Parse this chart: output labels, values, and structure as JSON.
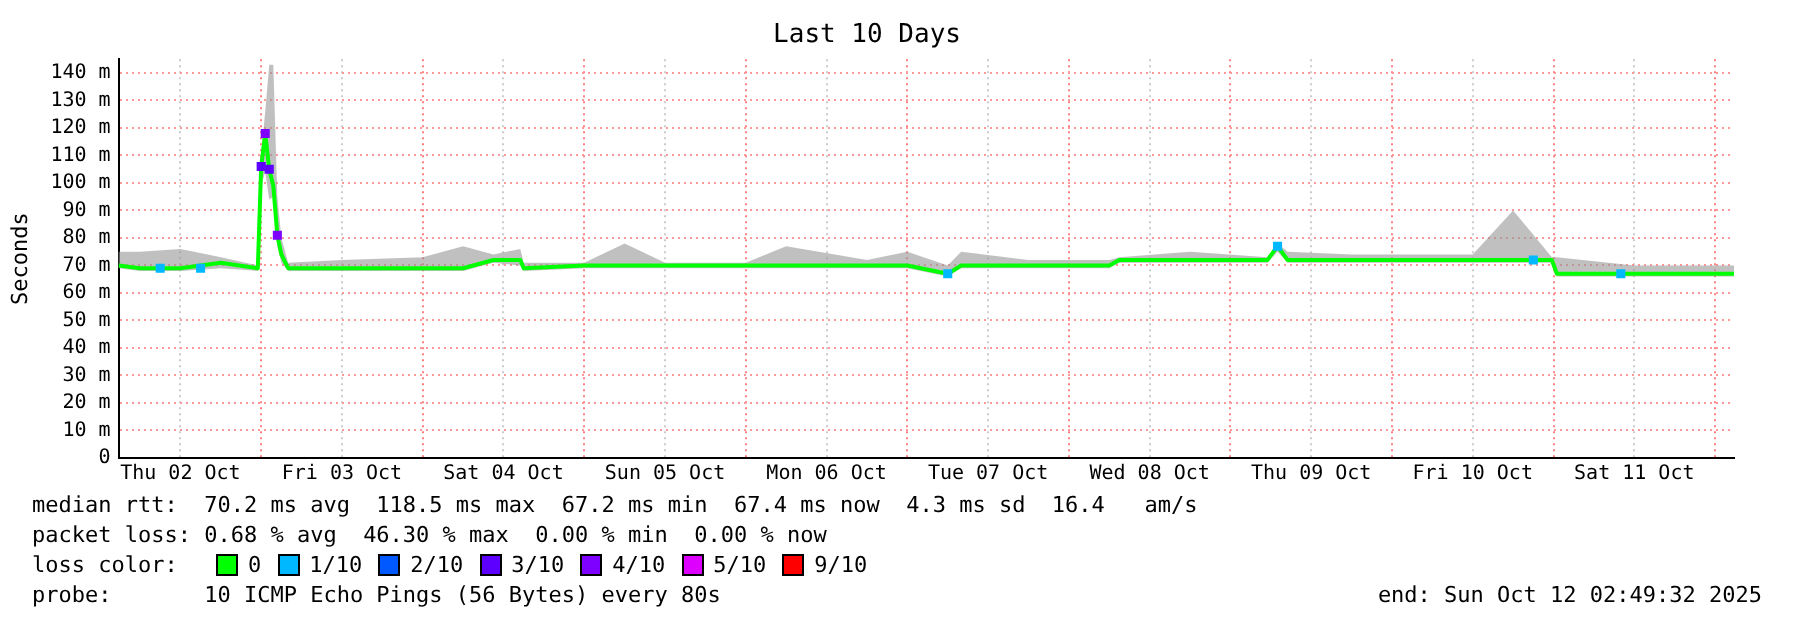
{
  "chart_data": {
    "type": "line",
    "title": "Last 10 Days",
    "ylabel": "Seconds",
    "legend_title": "loss color:",
    "xlim": [
      "2025-10-02T02:49",
      "2025-10-12T02:49"
    ],
    "xticks": [
      {
        "value": "2025-10-02T12:00",
        "label": "Thu 02 Oct"
      },
      {
        "value": "2025-10-03T00:00",
        "label": null
      },
      {
        "value": "2025-10-03T12:00",
        "label": "Fri 03 Oct"
      },
      {
        "value": "2025-10-04T00:00",
        "label": null
      },
      {
        "value": "2025-10-04T12:00",
        "label": "Sat 04 Oct"
      },
      {
        "value": "2025-10-05T00:00",
        "label": null
      },
      {
        "value": "2025-10-05T12:00",
        "label": "Sun 05 Oct"
      },
      {
        "value": "2025-10-06T00:00",
        "label": null
      },
      {
        "value": "2025-10-06T12:00",
        "label": "Mon 06 Oct"
      },
      {
        "value": "2025-10-07T00:00",
        "label": null
      },
      {
        "value": "2025-10-07T12:00",
        "label": "Tue 07 Oct"
      },
      {
        "value": "2025-10-08T00:00",
        "label": null
      },
      {
        "value": "2025-10-08T12:00",
        "label": "Wed 08 Oct"
      },
      {
        "value": "2025-10-09T00:00",
        "label": null
      },
      {
        "value": "2025-10-09T12:00",
        "label": "Thu 09 Oct"
      },
      {
        "value": "2025-10-10T00:00",
        "label": null
      },
      {
        "value": "2025-10-10T12:00",
        "label": "Fri 10 Oct"
      },
      {
        "value": "2025-10-11T00:00",
        "label": null
      },
      {
        "value": "2025-10-11T12:00",
        "label": "Sat 11 Oct"
      },
      {
        "value": "2025-10-12T00:00",
        "label": null
      }
    ],
    "ylim": [
      0,
      145
    ],
    "yticks": [
      0,
      {
        "value": 10,
        "label": "10 m"
      },
      {
        "value": 20,
        "label": "20 m"
      },
      {
        "value": 30,
        "label": "30 m"
      },
      {
        "value": 40,
        "label": "40 m"
      },
      {
        "value": 50,
        "label": "50 m"
      },
      {
        "value": 60,
        "label": "60 m"
      },
      {
        "value": 70,
        "label": "70 m"
      },
      {
        "value": 80,
        "label": "80 m"
      },
      {
        "value": 90,
        "label": "90 m"
      },
      {
        "value": 100,
        "label": "100 m"
      },
      {
        "value": 110,
        "label": "110 m"
      },
      {
        "value": 120,
        "label": "120 m"
      },
      {
        "value": 130,
        "label": "130 m"
      },
      {
        "value": 140,
        "label": "140 m"
      }
    ],
    "grid": true,
    "legend": "bottom",
    "marker": "none",
    "line_style": "solid",
    "series": [
      {
        "name": "0",
        "color": "#00ff00",
        "x": [
          "2025-10-02T02:49",
          "2025-10-02T06:00",
          "2025-10-02T12:00",
          "2025-10-02T18:00",
          "2025-10-02T23:30",
          "2025-10-03T00:00",
          "2025-10-03T00:36",
          "2025-10-03T01:12",
          "2025-10-03T01:48",
          "2025-10-03T02:24",
          "2025-10-03T03:00",
          "2025-10-03T04:00",
          "2025-10-03T12:00",
          "2025-10-04T00:00",
          "2025-10-04T06:00",
          "2025-10-04T10:30",
          "2025-10-04T14:30",
          "2025-10-04T15:00",
          "2025-10-05T00:00",
          "2025-10-05T06:00",
          "2025-10-05T12:00",
          "2025-10-06T00:00",
          "2025-10-06T06:00",
          "2025-10-06T18:00",
          "2025-10-07T00:00",
          "2025-10-07T06:00",
          "2025-10-07T08:00",
          "2025-10-07T18:00",
          "2025-10-08T06:00",
          "2025-10-08T07:30",
          "2025-10-08T18:00",
          "2025-10-09T05:30",
          "2025-10-09T07:00",
          "2025-10-09T08:30",
          "2025-10-09T18:00",
          "2025-10-10T12:00",
          "2025-10-10T18:00",
          "2025-10-10T23:45",
          "2025-10-11T00:30",
          "2025-10-11T12:00",
          "2025-10-12T02:49"
        ],
        "values": [
          70,
          69,
          69,
          71,
          69,
          106,
          118,
          105,
          99,
          81,
          74,
          69,
          69,
          69,
          69,
          72,
          72,
          69,
          70,
          70,
          70,
          70,
          70,
          70,
          70,
          67,
          70,
          70,
          70,
          72,
          72,
          72,
          77,
          72,
          72,
          72,
          72,
          72,
          67,
          67,
          67
        ],
        "lower": [
          69,
          68,
          68,
          69,
          68,
          99,
          104,
          94,
          95,
          77,
          71,
          68,
          68,
          68,
          68,
          71,
          70,
          68,
          69,
          69,
          69,
          69,
          69,
          69,
          69,
          66,
          69,
          69,
          69,
          71,
          71,
          71,
          75,
          71,
          71,
          71,
          71,
          71,
          66,
          66,
          66
        ],
        "upper": [
          75,
          75,
          76,
          73,
          70,
          110,
          126,
          143,
          143,
          95,
          80,
          71,
          72,
          73,
          77,
          74,
          76,
          71,
          71,
          78,
          71,
          71,
          77,
          72,
          75,
          70,
          75,
          72,
          72,
          73,
          75,
          73,
          78,
          75,
          74,
          74,
          90,
          73,
          73,
          70,
          70
        ]
      },
      {
        "name": "1/10",
        "color": "#00b8ff",
        "type": "scatter",
        "marker": "square",
        "x": [
          "2025-10-02T09:00",
          "2025-10-02T15:00",
          "2025-10-07T06:00",
          "2025-10-09T07:00",
          "2025-10-10T21:00",
          "2025-10-11T10:00"
        ],
        "values": [
          69,
          69,
          67,
          77,
          72,
          67
        ]
      },
      {
        "name": "2/10",
        "color": "#0059ff",
        "type": "scatter",
        "marker": "square"
      },
      {
        "name": "3/10",
        "color": "#5e00ff",
        "type": "scatter",
        "marker": "square",
        "x": [
          "2025-10-03T00:00",
          "2025-10-03T01:12"
        ],
        "values": [
          106,
          105
        ]
      },
      {
        "name": "4/10",
        "color": "#7e00ff",
        "type": "scatter",
        "marker": "square",
        "x": [
          "2025-10-03T00:36",
          "2025-10-03T02:24"
        ],
        "values": [
          118,
          81
        ]
      },
      {
        "name": "5/10",
        "color": "#dd00ff",
        "type": "scatter",
        "marker": "square"
      },
      {
        "name": "9/10",
        "color": "#ff0000",
        "type": "scatter",
        "marker": "square"
      }
    ],
    "annotations": [
      "median rtt:  70.2 ms avg  118.5 ms max  67.2 ms min  67.4 ms now  4.3 ms sd  16.4   am/s",
      "packet loss: 0.68 % avg  46.30 % max  0.00 % min  0.00 % now",
      "probe:       10 ICMP Echo Pings (56 Bytes) every 80s",
      "end: Sun Oct 12 02:49:32 2025"
    ]
  }
}
